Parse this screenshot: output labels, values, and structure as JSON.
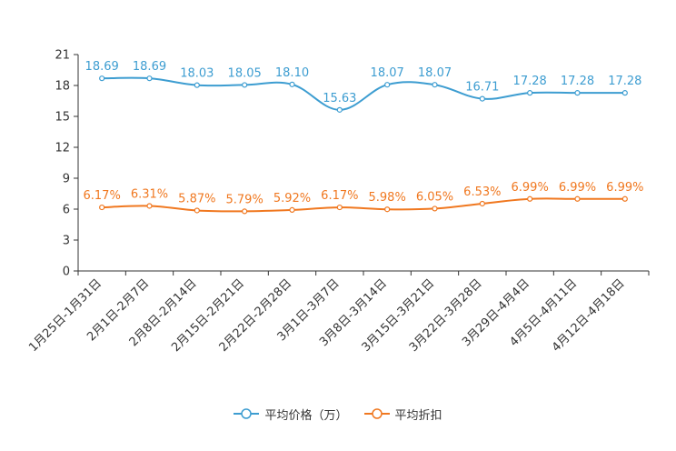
{
  "chart_data": {
    "type": "line",
    "title": "",
    "xlabel": "",
    "ylabel": "",
    "ylim": [
      0,
      21
    ],
    "yticks": [
      "0",
      "3",
      "6",
      "9",
      "12",
      "15",
      "18",
      "21"
    ],
    "categories": [
      "1月25日-1月31日",
      "2月1日-2月7日",
      "2月8日-2月14日",
      "2月15日-2月21日",
      "2月22日-2月28日",
      "3月1日-3月7日",
      "3月8日-3月14日",
      "3月15日-3月21日",
      "3月22日-3月28日",
      "3月29日-4月4日",
      "4月5日-4月11日",
      "4月12日-4月18日"
    ],
    "series": [
      {
        "name": "平均价格（万）",
        "color": "#3d9dd1",
        "values": [
          18.69,
          18.69,
          18.03,
          18.05,
          18.1,
          15.63,
          18.07,
          18.07,
          16.71,
          17.28,
          17.28,
          17.28
        ],
        "labels": [
          "18.69",
          "18.69",
          "18.03",
          "18.05",
          "18.10",
          "15.63",
          "18.07",
          "18.07",
          "16.71",
          "17.28",
          "17.28",
          "17.28"
        ]
      },
      {
        "name": "平均折扣",
        "color": "#f07820",
        "values": [
          6.17,
          6.31,
          5.87,
          5.79,
          5.92,
          6.17,
          5.98,
          6.05,
          6.53,
          6.99,
          6.99,
          6.99
        ],
        "labels": [
          "6.17%",
          "6.31%",
          "5.87%",
          "5.79%",
          "5.92%",
          "6.17%",
          "5.98%",
          "6.05%",
          "6.53%",
          "6.99%",
          "6.99%",
          "6.99%"
        ]
      }
    ],
    "legend_position": "bottom-center",
    "grid": false
  }
}
